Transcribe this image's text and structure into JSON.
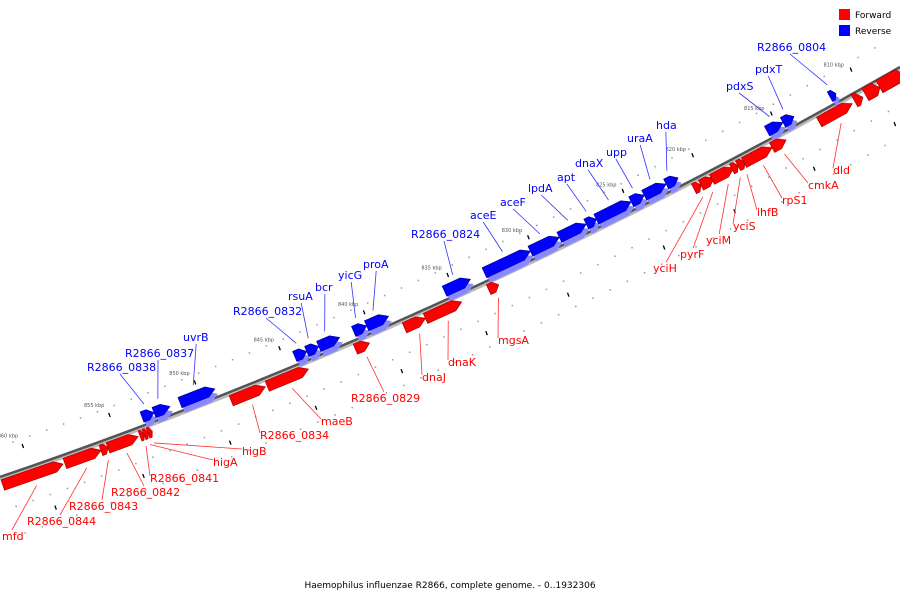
{
  "legend": [
    {
      "label": "Forward",
      "color": "#ff0000"
    },
    {
      "label": "Reverse",
      "color": "#0000ff"
    }
  ],
  "title": "Haemophilus influenzae R2866, complete genome. - 0..1932306",
  "kbp_ticks": [
    "810 kbp",
    "815 kbp",
    "820 kbp",
    "825 kbp",
    "830 kbp",
    "835 kbp",
    "840 kbp",
    "845 kbp",
    "850 kbp",
    "855 kbp",
    "860 kbp"
  ],
  "genes": [
    {
      "name": "R2866_0838",
      "strand": "reverse"
    },
    {
      "name": "R2866_0837",
      "strand": "reverse"
    },
    {
      "name": "uvrB",
      "strand": "reverse"
    },
    {
      "name": "R2866_0832",
      "strand": "reverse"
    },
    {
      "name": "rsuA",
      "strand": "reverse"
    },
    {
      "name": "bcr",
      "strand": "reverse"
    },
    {
      "name": "yicG",
      "strand": "reverse"
    },
    {
      "name": "proA",
      "strand": "reverse"
    },
    {
      "name": "R2866_0824",
      "strand": "reverse"
    },
    {
      "name": "aceE",
      "strand": "reverse"
    },
    {
      "name": "aceF",
      "strand": "reverse"
    },
    {
      "name": "lpdA",
      "strand": "reverse"
    },
    {
      "name": "apt",
      "strand": "reverse"
    },
    {
      "name": "dnaX",
      "strand": "reverse"
    },
    {
      "name": "upp",
      "strand": "reverse"
    },
    {
      "name": "uraA",
      "strand": "reverse"
    },
    {
      "name": "hda",
      "strand": "reverse"
    },
    {
      "name": "pdxS",
      "strand": "reverse"
    },
    {
      "name": "pdxT",
      "strand": "reverse"
    },
    {
      "name": "R2866_0804",
      "strand": "reverse"
    },
    {
      "name": "mfd",
      "strand": "forward"
    },
    {
      "name": "R2866_0844",
      "strand": "forward"
    },
    {
      "name": "R2866_0843",
      "strand": "forward"
    },
    {
      "name": "R2866_0842",
      "strand": "forward"
    },
    {
      "name": "R2866_0841",
      "strand": "forward"
    },
    {
      "name": "higA",
      "strand": "forward"
    },
    {
      "name": "higB",
      "strand": "forward"
    },
    {
      "name": "R2866_0834",
      "strand": "forward"
    },
    {
      "name": "maeB",
      "strand": "forward"
    },
    {
      "name": "R2866_0829",
      "strand": "forward"
    },
    {
      "name": "dnaJ",
      "strand": "forward"
    },
    {
      "name": "dnaK",
      "strand": "forward"
    },
    {
      "name": "mgsA",
      "strand": "forward"
    },
    {
      "name": "yciH",
      "strand": "forward"
    },
    {
      "name": "pyrF",
      "strand": "forward"
    },
    {
      "name": "yciM",
      "strand": "forward"
    },
    {
      "name": "yciS",
      "strand": "forward"
    },
    {
      "name": "ihfB",
      "strand": "forward"
    },
    {
      "name": "rpS1",
      "strand": "forward"
    },
    {
      "name": "cmkA",
      "strand": "forward"
    },
    {
      "name": "dld",
      "strand": "forward"
    }
  ]
}
